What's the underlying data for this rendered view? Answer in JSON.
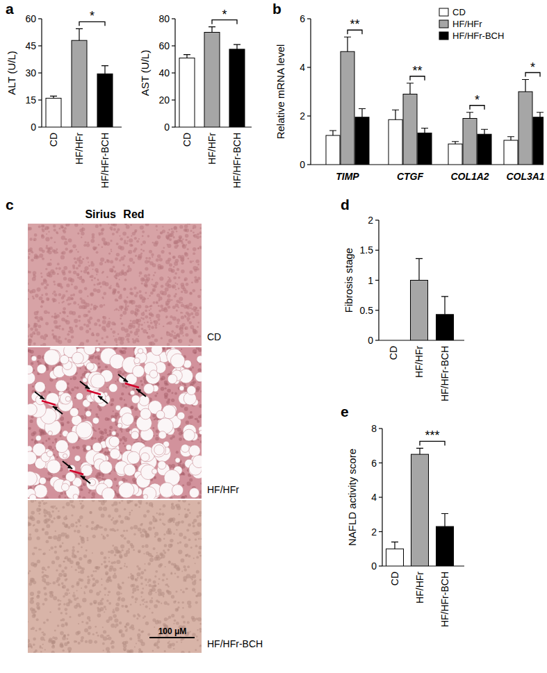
{
  "chart_data": [
    {
      "type": "bar",
      "panel": "a",
      "y_label": "ALT (U/L)",
      "categories": [
        "CD",
        "HF/HFr",
        "HF/HFr-BCH"
      ],
      "values": [
        16,
        48,
        29.5
      ],
      "errors": [
        1.2,
        6.5,
        4.5
      ],
      "colors": [
        "#ffffff",
        "#a6a6a6",
        "#000000"
      ],
      "ylim": [
        0,
        60
      ],
      "yticks": [
        0,
        15,
        30,
        45,
        60
      ],
      "annotations": [
        {
          "label": "*",
          "categories": [
            "HF/HFr",
            "HF/HFr-BCH"
          ]
        }
      ]
    },
    {
      "type": "bar",
      "y_label": "AST (U/L)",
      "categories": [
        "CD",
        "HF/HFr",
        "HF/HFr-BCH"
      ],
      "values": [
        51,
        70,
        57.5
      ],
      "errors": [
        2.5,
        4,
        3.5
      ],
      "colors": [
        "#ffffff",
        "#a6a6a6",
        "#000000"
      ],
      "ylim": [
        0,
        80
      ],
      "yticks": [
        0,
        20,
        40,
        60,
        80
      ],
      "annotations": [
        {
          "label": "*",
          "categories": [
            "HF/HFr",
            "HF/HFr-BCH"
          ]
        }
      ]
    },
    {
      "type": "grouped_bar",
      "panel": "b",
      "y_label": "Relative mRNA level",
      "categories": [
        "TIMP",
        "CTGF",
        "COL1A2",
        "COL3A1"
      ],
      "series": [
        {
          "name": "CD",
          "color": "#ffffff",
          "values": [
            1.2,
            1.85,
            0.85,
            1.0
          ],
          "errors": [
            0.2,
            0.4,
            0.1,
            0.15
          ]
        },
        {
          "name": "HF/HFr",
          "color": "#a6a6a6",
          "values": [
            4.65,
            2.9,
            1.9,
            3.0
          ],
          "errors": [
            0.6,
            0.45,
            0.25,
            0.5
          ]
        },
        {
          "name": "HF/HFr-BCH",
          "color": "#000000",
          "values": [
            1.95,
            1.3,
            1.25,
            1.95
          ],
          "errors": [
            0.35,
            0.2,
            0.2,
            0.2
          ]
        }
      ],
      "ylim": [
        0,
        6
      ],
      "yticks": [
        0,
        2,
        4,
        6
      ],
      "legend": "top-right",
      "annotations": [
        {
          "label": "**",
          "category": "TIMP"
        },
        {
          "label": "**",
          "category": "CTGF"
        },
        {
          "label": "*",
          "category": "COL1A2"
        },
        {
          "label": "*",
          "category": "COL3A1"
        }
      ]
    },
    {
      "type": "image",
      "panel": "c",
      "title": "Sirius Red",
      "images": [
        "CD",
        "HF/HFr",
        "HF/HFr-BCH"
      ],
      "scale_bar": "100 μM"
    },
    {
      "type": "bar",
      "panel": "d",
      "y_label": "Fibrosis stage",
      "categories": [
        "CD",
        "HF/HFr",
        "HF/HFr-BCH"
      ],
      "values": [
        0,
        1.0,
        0.43
      ],
      "errors": [
        null,
        0.36,
        0.3
      ],
      "colors": [
        "#ffffff",
        "#a6a6a6",
        "#000000"
      ],
      "ylim": [
        0,
        2
      ],
      "yticks": [
        0,
        0.5,
        1,
        1.5,
        2
      ]
    },
    {
      "type": "bar",
      "panel": "e",
      "y_label": "NAFLD activity score",
      "categories": [
        "CD",
        "HF/HFr",
        "HF/HFr-BCH"
      ],
      "values": [
        1.0,
        6.5,
        2.3
      ],
      "errors": [
        0.4,
        0.35,
        0.75
      ],
      "colors": [
        "#ffffff",
        "#a6a6a6",
        "#000000"
      ],
      "ylim": [
        0,
        8
      ],
      "yticks": [
        0,
        2,
        4,
        6,
        8
      ],
      "annotations": [
        {
          "label": "***",
          "categories": [
            "HF/HFr",
            "HF/HFr-BCH"
          ]
        }
      ]
    }
  ]
}
